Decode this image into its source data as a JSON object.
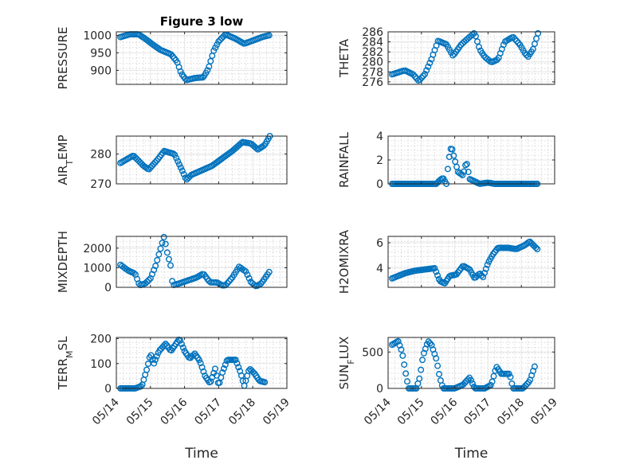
{
  "chart_data": [
    {
      "type": "scatter",
      "title": "Figure 3 low",
      "xlabel": "",
      "ylabel": "PRESSURE",
      "ylim": [
        860,
        1010
      ],
      "yticks": [
        "1000",
        "950",
        "900"
      ],
      "xlim": [
        0,
        5
      ],
      "xticks": [],
      "knots": [
        [
          0.12,
          995
        ],
        [
          0.4,
          1003
        ],
        [
          0.65,
          1003
        ],
        [
          0.85,
          990
        ],
        [
          1.05,
          975
        ],
        [
          1.3,
          958
        ],
        [
          1.6,
          946
        ],
        [
          1.78,
          925
        ],
        [
          1.9,
          892
        ],
        [
          2.05,
          872
        ],
        [
          2.3,
          878
        ],
        [
          2.55,
          880
        ],
        [
          2.7,
          905
        ],
        [
          2.85,
          955
        ],
        [
          3.0,
          983
        ],
        [
          3.2,
          1003
        ],
        [
          3.5,
          990
        ],
        [
          3.75,
          976
        ],
        [
          4.0,
          985
        ],
        [
          4.3,
          996
        ],
        [
          4.48,
          1000
        ]
      ],
      "n": 95
    },
    {
      "type": "scatter",
      "title": "",
      "xlabel": "",
      "ylabel": "THETA",
      "ylim": [
        275.5,
        286
      ],
      "yticks": [
        "286",
        "284",
        "282",
        "280",
        "278",
        "276"
      ],
      "xlim": [
        0,
        5
      ],
      "xticks": [],
      "knots": [
        [
          0.12,
          277.5
        ],
        [
          0.5,
          278.3
        ],
        [
          0.75,
          277.5
        ],
        [
          0.92,
          276.2
        ],
        [
          1.1,
          277.5
        ],
        [
          1.3,
          280.5
        ],
        [
          1.5,
          284.2
        ],
        [
          1.75,
          283.5
        ],
        [
          1.95,
          281.2
        ],
        [
          2.2,
          283.5
        ],
        [
          2.45,
          285
        ],
        [
          2.6,
          285.8
        ],
        [
          2.75,
          282.5
        ],
        [
          2.9,
          281
        ],
        [
          3.1,
          279.9
        ],
        [
          3.3,
          280.5
        ],
        [
          3.5,
          284
        ],
        [
          3.75,
          285
        ],
        [
          3.95,
          283.5
        ],
        [
          4.1,
          281.8
        ],
        [
          4.2,
          281
        ],
        [
          4.35,
          282.5
        ],
        [
          4.5,
          285.7
        ]
      ],
      "n": 90
    },
    {
      "type": "scatter",
      "title": "",
      "xlabel": "",
      "ylabel": "AIR_TEMP",
      "ylim": [
        270,
        286
      ],
      "yticks": [
        "280",
        "270"
      ],
      "xlim": [
        0,
        5
      ],
      "xticks": [],
      "knots": [
        [
          0.12,
          277
        ],
        [
          0.5,
          279.5
        ],
        [
          0.8,
          276
        ],
        [
          0.95,
          274.8
        ],
        [
          1.2,
          278
        ],
        [
          1.4,
          281
        ],
        [
          1.7,
          280
        ],
        [
          1.95,
          274
        ],
        [
          2.05,
          271.3
        ],
        [
          2.2,
          273
        ],
        [
          2.5,
          274.5
        ],
        [
          2.8,
          276
        ],
        [
          3.1,
          278.5
        ],
        [
          3.4,
          281
        ],
        [
          3.7,
          284
        ],
        [
          3.95,
          283.5
        ],
        [
          4.15,
          281.5
        ],
        [
          4.35,
          283
        ],
        [
          4.5,
          286
        ]
      ],
      "n": 100
    },
    {
      "type": "scatter",
      "title": "",
      "xlabel": "",
      "ylabel": "RAINFALL",
      "ylim": [
        0,
        4
      ],
      "yticks": [
        "4",
        "2",
        "0"
      ],
      "xlim": [
        0,
        5
      ],
      "xticks": [],
      "knots": [
        [
          0.12,
          0
        ],
        [
          1.45,
          0
        ],
        [
          1.55,
          0.3
        ],
        [
          1.65,
          0.5
        ],
        [
          1.75,
          0
        ],
        [
          1.82,
          2
        ],
        [
          1.9,
          3.2
        ],
        [
          2.0,
          2
        ],
        [
          2.1,
          1
        ],
        [
          2.25,
          0.7
        ],
        [
          2.35,
          1.9
        ],
        [
          2.45,
          0.4
        ],
        [
          2.6,
          0.2
        ],
        [
          2.75,
          0
        ],
        [
          3.0,
          0.1
        ],
        [
          3.2,
          0
        ],
        [
          4.48,
          0
        ]
      ],
      "n": 100
    },
    {
      "type": "scatter",
      "title": "",
      "xlabel": "",
      "ylabel": "MIXDEPTH",
      "ylim": [
        0,
        2600
      ],
      "yticks": [
        "2000",
        "1000",
        "0"
      ],
      "xlim": [
        0,
        5
      ],
      "xticks": [],
      "knots": [
        [
          0.12,
          1150
        ],
        [
          0.35,
          850
        ],
        [
          0.55,
          700
        ],
        [
          0.68,
          100
        ],
        [
          0.85,
          200
        ],
        [
          1.0,
          450
        ],
        [
          1.15,
          1100
        ],
        [
          1.3,
          2000
        ],
        [
          1.4,
          2600
        ],
        [
          1.5,
          1700
        ],
        [
          1.6,
          1050
        ],
        [
          1.65,
          100
        ],
        [
          1.85,
          200
        ],
        [
          2.1,
          350
        ],
        [
          2.35,
          500
        ],
        [
          2.55,
          700
        ],
        [
          2.75,
          250
        ],
        [
          2.95,
          250
        ],
        [
          3.1,
          100
        ],
        [
          3.2,
          100
        ],
        [
          3.4,
          500
        ],
        [
          3.6,
          1050
        ],
        [
          3.8,
          800
        ],
        [
          3.95,
          250
        ],
        [
          4.1,
          50
        ],
        [
          4.25,
          200
        ],
        [
          4.48,
          780
        ]
      ],
      "n": 90
    },
    {
      "type": "scatter",
      "title": "",
      "xlabel": "",
      "ylabel": "H2OMIXRA",
      "ylim": [
        2.5,
        6.5
      ],
      "yticks": [
        "6",
        "4"
      ],
      "xlim": [
        0,
        5
      ],
      "xticks": [],
      "knots": [
        [
          0.12,
          3.2
        ],
        [
          0.5,
          3.6
        ],
        [
          0.8,
          3.8
        ],
        [
          1.1,
          3.9
        ],
        [
          1.4,
          4.0
        ],
        [
          1.55,
          3.0
        ],
        [
          1.7,
          2.8
        ],
        [
          1.85,
          3.4
        ],
        [
          2.05,
          3.5
        ],
        [
          2.25,
          4.2
        ],
        [
          2.45,
          3.9
        ],
        [
          2.6,
          3.2
        ],
        [
          2.75,
          3.6
        ],
        [
          2.85,
          3.3
        ],
        [
          3.0,
          4.4
        ],
        [
          3.15,
          5.1
        ],
        [
          3.3,
          5.6
        ],
        [
          3.6,
          5.6
        ],
        [
          3.85,
          5.5
        ],
        [
          4.1,
          5.8
        ],
        [
          4.25,
          6.1
        ],
        [
          4.48,
          5.5
        ]
      ],
      "n": 100
    },
    {
      "type": "scatter",
      "title": "",
      "xlabel": "Time",
      "ylabel": "TERR_MSL",
      "ylim": [
        0,
        205
      ],
      "yticks": [
        "200",
        "100",
        "0"
      ],
      "xlim": [
        0,
        5
      ],
      "xticks": [
        "05/14",
        "05/15",
        "05/16",
        "05/17",
        "05/18",
        "05/19"
      ],
      "knots": [
        [
          0.12,
          0
        ],
        [
          0.55,
          0
        ],
        [
          0.75,
          10
        ],
        [
          0.9,
          80
        ],
        [
          1.0,
          140
        ],
        [
          1.1,
          100
        ],
        [
          1.25,
          150
        ],
        [
          1.45,
          180
        ],
        [
          1.6,
          150
        ],
        [
          1.85,
          200
        ],
        [
          2.0,
          150
        ],
        [
          2.15,
          120
        ],
        [
          2.3,
          140
        ],
        [
          2.45,
          110
        ],
        [
          2.6,
          50
        ],
        [
          2.75,
          20
        ],
        [
          2.9,
          80
        ],
        [
          3.0,
          10
        ],
        [
          3.1,
          60
        ],
        [
          3.25,
          115
        ],
        [
          3.5,
          115
        ],
        [
          3.65,
          60
        ],
        [
          3.75,
          10
        ],
        [
          3.9,
          80
        ],
        [
          4.05,
          60
        ],
        [
          4.2,
          30
        ],
        [
          4.35,
          25
        ]
      ],
      "n": 100
    },
    {
      "type": "scatter",
      "title": "",
      "xlabel": "Time",
      "ylabel": "SUN_FLUX",
      "ylim": [
        0,
        700
      ],
      "yticks": [
        "500",
        "0"
      ],
      "xlim": [
        0,
        5
      ],
      "xticks": [
        "05/14",
        "05/15",
        "05/16",
        "05/17",
        "05/18",
        "05/19"
      ],
      "knots": [
        [
          0.12,
          600
        ],
        [
          0.3,
          650
        ],
        [
          0.42,
          500
        ],
        [
          0.55,
          150
        ],
        [
          0.62,
          0
        ],
        [
          0.85,
          0
        ],
        [
          0.95,
          150
        ],
        [
          1.05,
          450
        ],
        [
          1.2,
          650
        ],
        [
          1.3,
          600
        ],
        [
          1.45,
          400
        ],
        [
          1.55,
          150
        ],
        [
          1.65,
          0
        ],
        [
          2.0,
          0
        ],
        [
          2.25,
          50
        ],
        [
          2.45,
          150
        ],
        [
          2.6,
          0
        ],
        [
          2.9,
          0
        ],
        [
          3.1,
          50
        ],
        [
          3.25,
          300
        ],
        [
          3.4,
          200
        ],
        [
          3.65,
          200
        ],
        [
          3.75,
          0
        ],
        [
          4.05,
          0
        ],
        [
          4.25,
          100
        ],
        [
          4.4,
          300
        ]
      ],
      "n": 95
    }
  ]
}
